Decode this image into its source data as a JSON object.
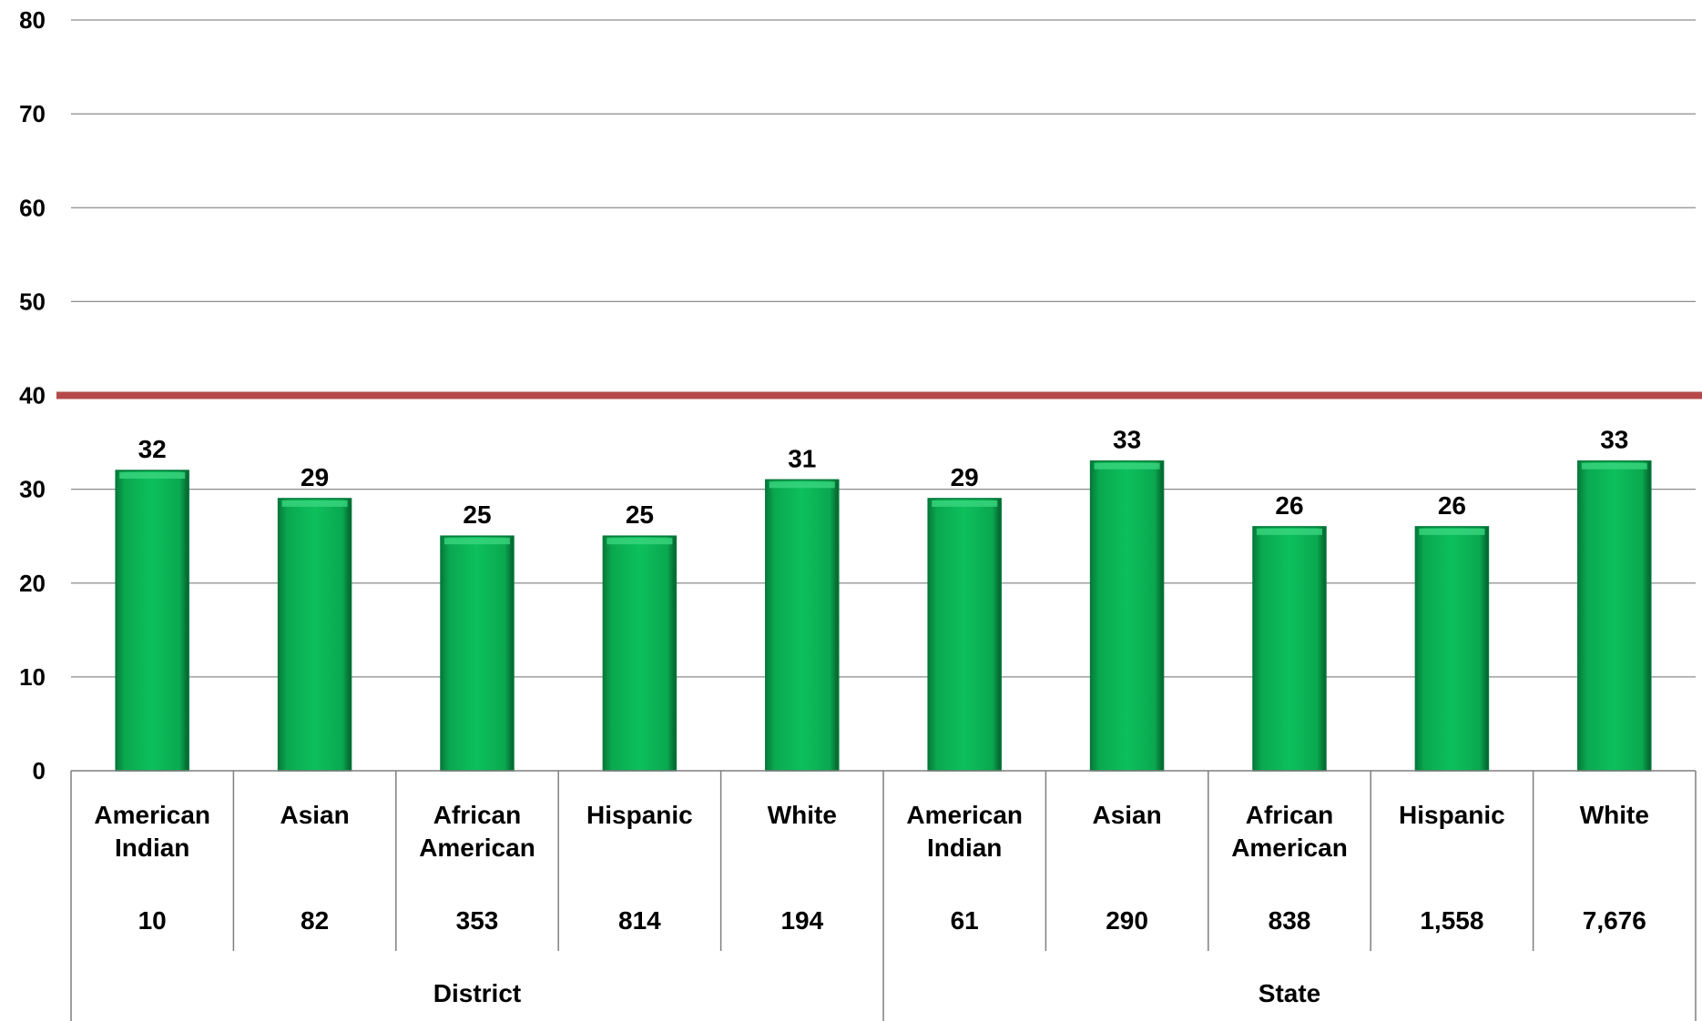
{
  "chart_data": {
    "type": "bar",
    "ylim": [
      0,
      80
    ],
    "yticks": [
      "0",
      "10",
      "20",
      "30",
      "40",
      "50",
      "60",
      "70",
      "80"
    ],
    "grid": true,
    "reference_line": 40,
    "categories": [
      {
        "label": [
          "American",
          "Indian"
        ],
        "count": "10"
      },
      {
        "label": [
          "Asian"
        ],
        "count": "82"
      },
      {
        "label": [
          "African",
          "American"
        ],
        "count": "353"
      },
      {
        "label": [
          "Hispanic"
        ],
        "count": "814"
      },
      {
        "label": [
          "White"
        ],
        "count": "194"
      },
      {
        "label": [
          "American",
          "Indian"
        ],
        "count": "61"
      },
      {
        "label": [
          "Asian"
        ],
        "count": "290"
      },
      {
        "label": [
          "African",
          "American"
        ],
        "count": "838"
      },
      {
        "label": [
          "Hispanic"
        ],
        "count": "1,558"
      },
      {
        "label": [
          "White"
        ],
        "count": "7,676"
      }
    ],
    "groups": [
      {
        "label": "District",
        "span": 5
      },
      {
        "label": "State",
        "span": 5
      }
    ],
    "values": [
      32,
      29,
      25,
      25,
      31,
      29,
      33,
      26,
      26,
      33
    ],
    "colors": {
      "bar": "#08b856",
      "bar_dark": "#03783a",
      "reference_line": "#b5494a",
      "grid": "#8c8c8c"
    }
  }
}
